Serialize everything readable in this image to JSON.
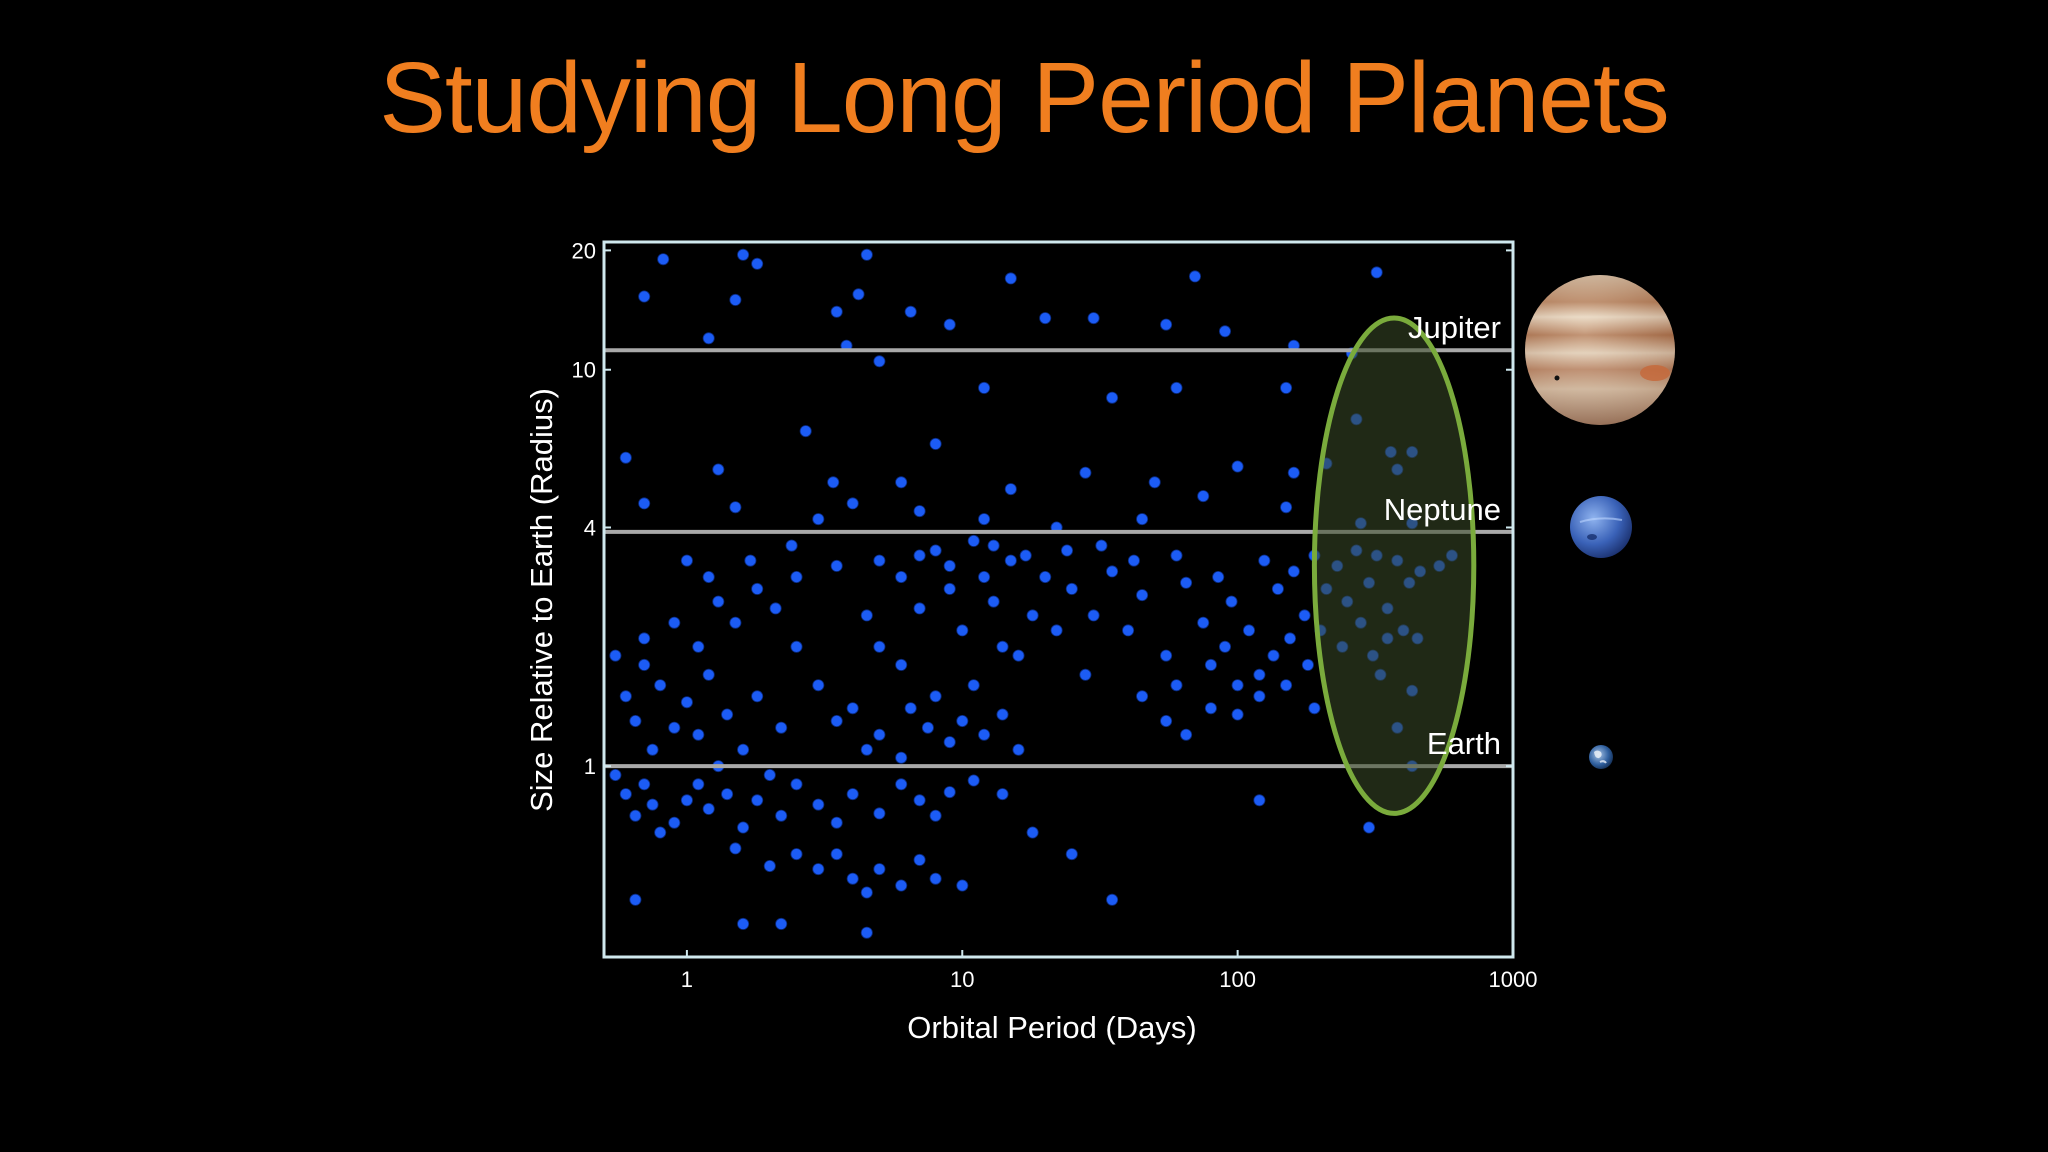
{
  "slide": {
    "title": "Studying Long Period Planets",
    "title_color": "#f07e1f",
    "background": "#000000"
  },
  "colors": {
    "point": "#1c5cf5",
    "point_stroke": "#0a2b80",
    "frame": "#cfe8ee",
    "reference_line": "#a9a9a9",
    "highlight_fill": "#3a4a28",
    "highlight_stroke": "#7aab3c",
    "text": "#ffffff"
  },
  "chart_data": {
    "type": "scatter",
    "title": "",
    "xlabel": "Orbital Period (Days)",
    "ylabel": "Size Relative to Earth (Radius)",
    "xscale": "log",
    "yscale": "log",
    "xlim": [
      0.5,
      1000
    ],
    "ylim": [
      0.33,
      21
    ],
    "xticks": [
      1,
      10,
      100,
      1000
    ],
    "yticks": [
      1,
      4,
      10,
      20
    ],
    "grid": false,
    "legend": "none",
    "reference_lines": [
      {
        "name": "Jupiter",
        "y": 11.2
      },
      {
        "name": "Neptune",
        "y": 3.9
      },
      {
        "name": "Earth",
        "y": 1
      }
    ],
    "highlight_region": {
      "shape": "ellipse",
      "x_range": [
        190,
        720
      ],
      "y_range": [
        0.76,
        13.5
      ]
    },
    "series": [
      {
        "points_reading": [
          [
            0.8,
            20.4
          ],
          [
            0.82,
            19
          ],
          [
            1.6,
            19.5
          ],
          [
            1.8,
            18.5
          ],
          [
            3.2,
            20.6
          ],
          [
            4.5,
            19.5
          ],
          [
            13,
            21
          ],
          [
            35,
            20.8
          ],
          [
            200,
            20.5
          ],
          [
            320,
            17.6
          ],
          [
            70,
            17.2
          ],
          [
            0.7,
            15.3
          ],
          [
            1.5,
            15
          ],
          [
            3.5,
            14
          ],
          [
            4.2,
            15.5
          ],
          [
            6.5,
            14
          ],
          [
            9,
            13
          ],
          [
            15,
            17
          ],
          [
            20,
            13.5
          ],
          [
            30,
            13.5
          ],
          [
            55,
            13
          ],
          [
            90,
            12.5
          ],
          [
            160,
            11.5
          ],
          [
            260,
            11
          ],
          [
            1.2,
            12
          ],
          [
            3.8,
            11.5
          ],
          [
            5,
            10.5
          ],
          [
            12,
            9
          ],
          [
            35,
            8.5
          ],
          [
            60,
            9
          ],
          [
            150,
            9
          ],
          [
            270,
            7.5
          ],
          [
            360,
            6.2
          ],
          [
            430,
            6.2
          ],
          [
            0.6,
            6
          ],
          [
            1.3,
            5.6
          ],
          [
            2.7,
            7
          ],
          [
            3.4,
            5.2
          ],
          [
            6,
            5.2
          ],
          [
            8,
            6.5
          ],
          [
            15,
            5
          ],
          [
            28,
            5.5
          ],
          [
            50,
            5.2
          ],
          [
            100,
            5.7
          ],
          [
            160,
            5.5
          ],
          [
            210,
            5.8
          ],
          [
            380,
            5.6
          ],
          [
            0.7,
            4.6
          ],
          [
            1.5,
            4.5
          ],
          [
            3,
            4.2
          ],
          [
            4,
            4.6
          ],
          [
            7,
            4.4
          ],
          [
            12,
            4.2
          ],
          [
            22,
            4.0
          ],
          [
            45,
            4.2
          ],
          [
            75,
            4.8
          ],
          [
            150,
            4.5
          ],
          [
            280,
            4.1
          ],
          [
            430,
            4.1
          ]
        ],
        "points_center": [
          [
            3.5,
            3.2
          ],
          [
            4.5,
            2.4
          ],
          [
            5,
            2
          ],
          [
            6,
            1.8
          ],
          [
            7,
            2.5
          ],
          [
            8,
            1.5
          ],
          [
            9,
            2.8
          ],
          [
            10,
            2.2
          ],
          [
            11,
            1.6
          ],
          [
            12,
            3.0
          ],
          [
            13,
            2.6
          ],
          [
            14,
            2.0
          ],
          [
            16,
            1.9
          ],
          [
            18,
            2.4
          ],
          [
            20,
            3.0
          ],
          [
            22,
            2.2
          ],
          [
            25,
            2.8
          ],
          [
            28,
            1.7
          ],
          [
            30,
            2.4
          ],
          [
            35,
            3.1
          ],
          [
            40,
            2.2
          ],
          [
            45,
            2.7
          ],
          [
            55,
            1.9
          ],
          [
            65,
            2.9
          ],
          [
            75,
            2.3
          ],
          [
            2.5,
            2.0
          ],
          [
            3.0,
            1.6
          ],
          [
            3.5,
            1.3
          ],
          [
            4.0,
            1.4
          ],
          [
            4.5,
            1.1
          ],
          [
            5.0,
            1.2
          ],
          [
            6.0,
            1.05
          ],
          [
            6.5,
            1.4
          ],
          [
            7.5,
            1.25
          ],
          [
            9,
            1.15
          ],
          [
            10,
            1.3
          ],
          [
            12,
            1.2
          ],
          [
            14,
            1.35
          ],
          [
            16,
            1.1
          ],
          [
            5,
            3.3
          ],
          [
            6,
            3.0
          ],
          [
            7,
            3.4
          ],
          [
            8,
            3.5
          ],
          [
            9,
            3.2
          ],
          [
            11,
            3.7
          ],
          [
            13,
            3.6
          ],
          [
            15,
            3.3
          ],
          [
            17,
            3.4
          ],
          [
            24,
            3.5
          ],
          [
            32,
            3.6
          ],
          [
            42,
            3.3
          ],
          [
            60,
            3.4
          ]
        ],
        "points_low": [
          [
            0.55,
            1.9
          ],
          [
            0.6,
            1.5
          ],
          [
            0.65,
            1.3
          ],
          [
            0.7,
            1.8
          ],
          [
            0.75,
            1.1
          ],
          [
            0.8,
            1.6
          ],
          [
            0.9,
            1.25
          ],
          [
            1.0,
            1.45
          ],
          [
            1.1,
            1.2
          ],
          [
            1.2,
            1.7
          ],
          [
            1.3,
            1.0
          ],
          [
            1.4,
            1.35
          ],
          [
            1.6,
            1.1
          ],
          [
            1.8,
            1.5
          ],
          [
            2.0,
            0.95
          ],
          [
            2.2,
            1.25
          ],
          [
            0.55,
            0.95
          ],
          [
            0.6,
            0.85
          ],
          [
            0.65,
            0.75
          ],
          [
            0.7,
            0.9
          ],
          [
            0.75,
            0.8
          ],
          [
            0.8,
            0.68
          ],
          [
            0.9,
            0.72
          ],
          [
            1.0,
            0.82
          ],
          [
            1.1,
            0.9
          ],
          [
            1.2,
            0.78
          ],
          [
            1.4,
            0.85
          ],
          [
            1.6,
            0.7
          ],
          [
            1.8,
            0.82
          ],
          [
            2.2,
            0.75
          ],
          [
            2.5,
            0.9
          ],
          [
            3,
            0.8
          ],
          [
            3.5,
            0.72
          ],
          [
            4,
            0.85
          ],
          [
            5,
            0.76
          ],
          [
            6,
            0.9
          ],
          [
            7,
            0.82
          ],
          [
            8,
            0.75
          ],
          [
            9,
            0.86
          ],
          [
            11,
            0.92
          ],
          [
            14,
            0.85
          ],
          [
            1.5,
            0.62
          ],
          [
            2.0,
            0.56
          ],
          [
            2.5,
            0.6
          ],
          [
            3.0,
            0.55
          ],
          [
            3.5,
            0.6
          ],
          [
            4.0,
            0.52
          ],
          [
            4.5,
            0.48
          ],
          [
            5.0,
            0.55
          ],
          [
            6,
            0.5
          ],
          [
            7,
            0.58
          ],
          [
            8,
            0.52
          ],
          [
            10,
            0.5
          ],
          [
            0.65,
            0.46
          ],
          [
            1.6,
            0.4
          ],
          [
            2.2,
            0.4
          ],
          [
            4.5,
            0.38
          ],
          [
            35,
            0.46
          ],
          [
            25,
            0.6
          ],
          [
            18,
            0.68
          ]
        ],
        "points_wide": [
          [
            0.7,
            2.1
          ],
          [
            0.9,
            2.3
          ],
          [
            1.1,
            2.0
          ],
          [
            1.3,
            2.6
          ],
          [
            1.5,
            2.3
          ],
          [
            1.8,
            2.8
          ],
          [
            2.1,
            2.5
          ],
          [
            2.5,
            3.0
          ],
          [
            1.0,
            3.3
          ],
          [
            1.2,
            3.0
          ],
          [
            1.7,
            3.3
          ],
          [
            2.4,
            3.6
          ],
          [
            85,
            3.0
          ],
          [
            95,
            2.6
          ],
          [
            110,
            2.2
          ],
          [
            125,
            3.3
          ],
          [
            140,
            2.8
          ],
          [
            160,
            3.1
          ],
          [
            175,
            2.4
          ],
          [
            190,
            3.4
          ],
          [
            210,
            2.8
          ],
          [
            230,
            3.2
          ],
          [
            250,
            2.6
          ],
          [
            270,
            3.5
          ],
          [
            300,
            2.9
          ],
          [
            320,
            3.4
          ],
          [
            350,
            2.5
          ],
          [
            380,
            3.3
          ],
          [
            420,
            2.9
          ],
          [
            460,
            3.1
          ],
          [
            540,
            3.2
          ],
          [
            600,
            3.4
          ],
          [
            80,
            1.8
          ],
          [
            90,
            2.0
          ],
          [
            100,
            1.6
          ],
          [
            120,
            1.7
          ],
          [
            135,
            1.9
          ],
          [
            155,
            2.1
          ],
          [
            180,
            1.8
          ],
          [
            200,
            2.2
          ],
          [
            240,
            2.0
          ],
          [
            280,
            2.3
          ],
          [
            310,
            1.9
          ],
          [
            350,
            2.1
          ],
          [
            400,
            2.2
          ],
          [
            450,
            2.1
          ],
          [
            45,
            1.5
          ],
          [
            55,
            1.3
          ],
          [
            60,
            1.6
          ],
          [
            65,
            1.2
          ],
          [
            80,
            1.4
          ],
          [
            100,
            1.35
          ],
          [
            120,
            1.5
          ],
          [
            150,
            1.6
          ],
          [
            190,
            1.4
          ],
          [
            330,
            1.7
          ],
          [
            430,
            1.55
          ],
          [
            380,
            1.25
          ],
          [
            430,
            1.0
          ],
          [
            120,
            0.82
          ],
          [
            300,
            0.7
          ]
        ]
      }
    ]
  },
  "reference_planets": [
    {
      "name": "Jupiter",
      "icon": "jupiter-image"
    },
    {
      "name": "Neptune",
      "icon": "neptune-image"
    },
    {
      "name": "Earth",
      "icon": "earth-image"
    }
  ]
}
